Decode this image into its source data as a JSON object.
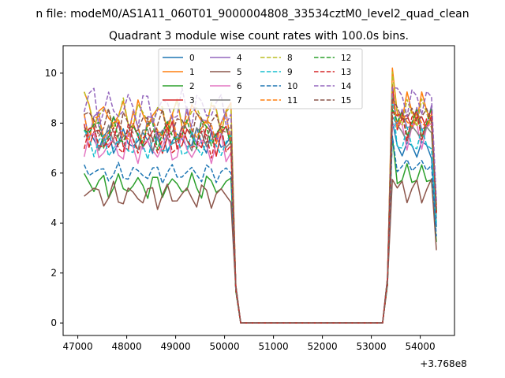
{
  "chart_data": {
    "type": "line",
    "suptitle": "n file: modeM0/AS1A11_060T01_9000004808_33534cztM0_level2_quad_clean",
    "title": "Quadrant 3 module wise count rates with 100.0s bins.",
    "xlabel": "",
    "ylabel": "",
    "x_offset_label": "+3.768e8",
    "xlim": [
      46700,
      54700
    ],
    "ylim": [
      -0.5,
      11.1
    ],
    "x_ticks": [
      47000,
      48000,
      49000,
      50000,
      51000,
      52000,
      53000,
      54000
    ],
    "y_ticks": [
      0,
      2,
      4,
      6,
      8,
      10
    ],
    "grid": false,
    "legend_position": "top-center",
    "legend_columns": 4,
    "x_start": 47130,
    "bin": 100,
    "segment1_end": 50130,
    "gap_points": [
      [
        50230,
        1.5
      ],
      [
        50330,
        0
      ],
      [
        53230,
        0
      ],
      [
        53330,
        1.8
      ]
    ],
    "segment2_start": 53430,
    "segment2_end": 54330,
    "series": [
      {
        "name": "0",
        "color": "#1f77b4",
        "style": "solid",
        "level1": 7.3,
        "level2": 7.0,
        "amp": 0.4,
        "ph": 0.3
      },
      {
        "name": "1",
        "color": "#ff7f0e",
        "style": "solid",
        "level1": 8.3,
        "level2": 8.6,
        "amp": 0.5,
        "ph": 1.1
      },
      {
        "name": "2",
        "color": "#2ca02c",
        "style": "solid",
        "level1": 5.5,
        "level2": 5.9,
        "amp": 0.4,
        "ph": 2.0
      },
      {
        "name": "3",
        "color": "#d62728",
        "style": "solid",
        "level1": 7.4,
        "level2": 8.1,
        "amp": 0.5,
        "ph": 2.7
      },
      {
        "name": "4",
        "color": "#9467bd",
        "style": "solid",
        "level1": 7.8,
        "level2": 8.1,
        "amp": 0.6,
        "ph": 3.4
      },
      {
        "name": "5",
        "color": "#8c564b",
        "style": "solid",
        "level1": 5.1,
        "level2": 5.3,
        "amp": 0.4,
        "ph": 4.1
      },
      {
        "name": "6",
        "color": "#e377c2",
        "style": "solid",
        "level1": 7.0,
        "level2": 7.6,
        "amp": 0.5,
        "ph": 4.8
      },
      {
        "name": "7",
        "color": "#7f7f7f",
        "style": "solid",
        "level1": 7.4,
        "level2": 7.6,
        "amp": 0.4,
        "ph": 5.5
      },
      {
        "name": "8",
        "color": "#bcbd22",
        "style": "dashed",
        "level1": 8.3,
        "level2": 8.4,
        "amp": 0.5,
        "ph": 0.8
      },
      {
        "name": "9",
        "color": "#17becf",
        "style": "dashed",
        "level1": 7.1,
        "level2": 7.3,
        "amp": 0.4,
        "ph": 1.6
      },
      {
        "name": "10",
        "color": "#1f77b4",
        "style": "dashed",
        "level1": 6.0,
        "level2": 6.3,
        "amp": 0.3,
        "ph": 2.4
      },
      {
        "name": "11",
        "color": "#ff7f0e",
        "style": "dashed",
        "level1": 7.8,
        "level2": 8.1,
        "amp": 0.5,
        "ph": 3.1
      },
      {
        "name": "12",
        "color": "#2ca02c",
        "style": "dashed",
        "level1": 7.6,
        "level2": 8.0,
        "amp": 0.5,
        "ph": 3.9
      },
      {
        "name": "13",
        "color": "#d62728",
        "style": "dashed",
        "level1": 7.3,
        "level2": 8.0,
        "amp": 0.5,
        "ph": 4.6
      },
      {
        "name": "14",
        "color": "#9467bd",
        "style": "dashed",
        "level1": 8.6,
        "level2": 8.9,
        "amp": 0.6,
        "ph": 5.3
      },
      {
        "name": "15",
        "color": "#8c564b",
        "style": "dashed",
        "level1": 7.9,
        "level2": 8.3,
        "amp": 0.5,
        "ph": 6.0
      }
    ]
  }
}
